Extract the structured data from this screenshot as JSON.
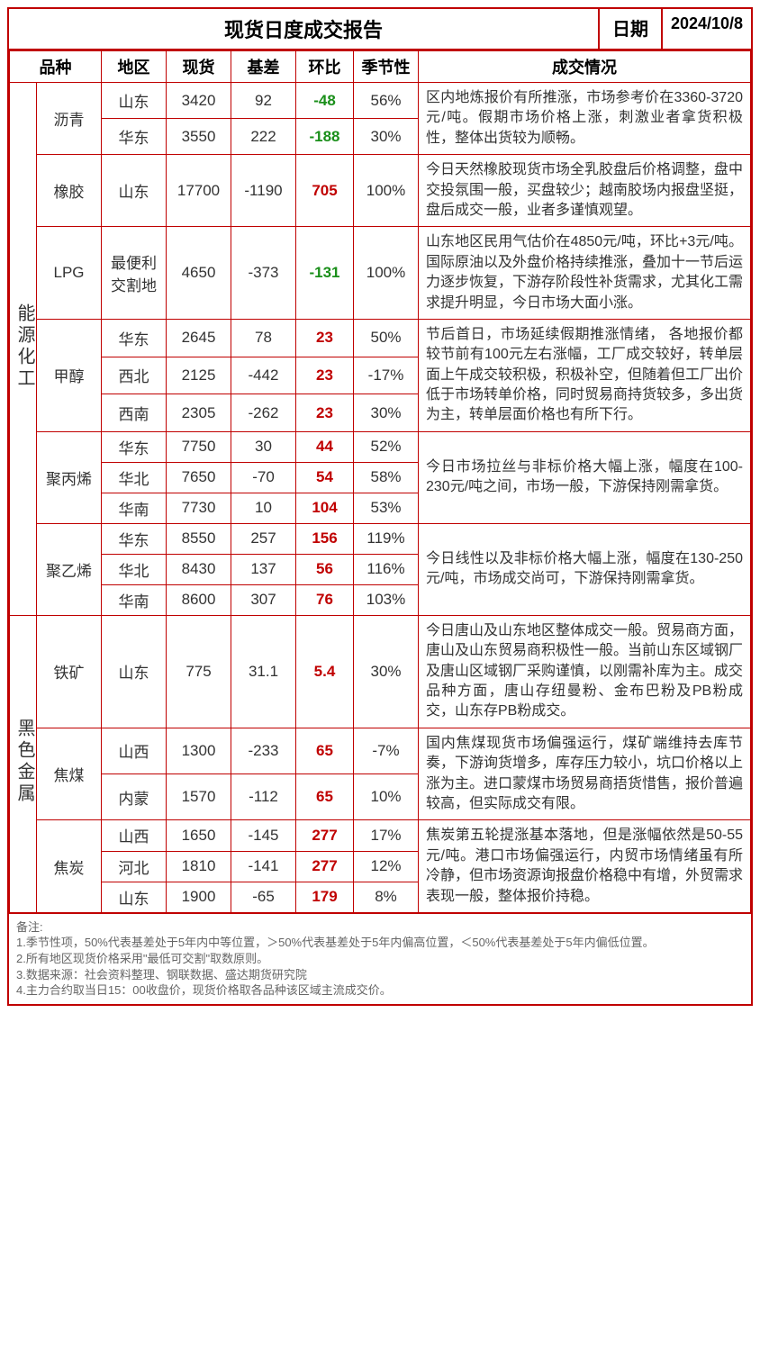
{
  "title": "现货日度成交报告",
  "date_label": "日期",
  "date_value": "2024/10/8",
  "headers": {
    "category_product": "品种",
    "region": "地区",
    "spot": "现货",
    "basis": "基差",
    "mom": "环比",
    "season": "季节性",
    "situation": "成交情况"
  },
  "colors": {
    "border": "#c00000",
    "pos": "#c00000",
    "neg": "#1a8f1a",
    "text": "#333333",
    "footnote": "#666666",
    "bg": "#ffffff"
  },
  "categories": [
    {
      "name": "能源化工",
      "products": [
        {
          "name": "沥青",
          "desc": "区内地炼报价有所推涨，市场参考价在3360-3720元/吨。假期市场价格上涨，刺激业者拿货积极性，整体出货较为顺畅。",
          "rows": [
            {
              "region": "山东",
              "spot": "3420",
              "basis": "92",
              "mom": "-48",
              "mom_dir": "neg",
              "season": "56%"
            },
            {
              "region": "华东",
              "spot": "3550",
              "basis": "222",
              "mom": "-188",
              "mom_dir": "neg",
              "season": "30%"
            }
          ]
        },
        {
          "name": "橡胶",
          "desc": "今日天然橡胶现货市场全乳胶盘后价格调整，盘中交投氛围一般，买盘较少；越南胶场内报盘坚挺，盘后成交一般，业者多谨慎观望。",
          "rows": [
            {
              "region": "山东",
              "spot": "17700",
              "basis": "-1190",
              "mom": "705",
              "mom_dir": "pos",
              "season": "100%"
            }
          ]
        },
        {
          "name": "LPG",
          "desc": "山东地区民用气估价在4850元/吨，环比+3元/吨。 国际原油以及外盘价格持续推涨，叠加十一节后运力逐步恢复，下游存阶段性补货需求，尤其化工需求提升明显，今日市场大面小涨。",
          "rows": [
            {
              "region": "最便利交割地",
              "spot": "4650",
              "basis": "-373",
              "mom": "-131",
              "mom_dir": "neg",
              "season": "100%"
            }
          ]
        },
        {
          "name": "甲醇",
          "desc": "节后首日，市场延续假期推涨情绪， 各地报价都较节前有100元左右涨幅，工厂成交较好，转单层面上午成交较积极，积极补空，但随着但工厂出价低于市场转单价格，同时贸易商持货较多，多出货为主，转单层面价格也有所下行。",
          "rows": [
            {
              "region": "华东",
              "spot": "2645",
              "basis": "78",
              "mom": "23",
              "mom_dir": "pos",
              "season": "50%"
            },
            {
              "region": "西北",
              "spot": "2125",
              "basis": "-442",
              "mom": "23",
              "mom_dir": "pos",
              "season": "-17%"
            },
            {
              "region": "西南",
              "spot": "2305",
              "basis": "-262",
              "mom": "23",
              "mom_dir": "pos",
              "season": "30%"
            }
          ]
        },
        {
          "name": "聚丙烯",
          "desc": "今日市场拉丝与非标价格大幅上涨，幅度在100-230元/吨之间，市场一般，下游保持刚需拿货。",
          "rows": [
            {
              "region": "华东",
              "spot": "7750",
              "basis": "30",
              "mom": "44",
              "mom_dir": "pos",
              "season": "52%"
            },
            {
              "region": "华北",
              "spot": "7650",
              "basis": "-70",
              "mom": "54",
              "mom_dir": "pos",
              "season": "58%"
            },
            {
              "region": "华南",
              "spot": "7730",
              "basis": "10",
              "mom": "104",
              "mom_dir": "pos",
              "season": "53%"
            }
          ]
        },
        {
          "name": "聚乙烯",
          "desc": "今日线性以及非标价格大幅上涨，幅度在130-250元/吨，市场成交尚可，下游保持刚需拿货。",
          "rows": [
            {
              "region": "华东",
              "spot": "8550",
              "basis": "257",
              "mom": "156",
              "mom_dir": "pos",
              "season": "119%"
            },
            {
              "region": "华北",
              "spot": "8430",
              "basis": "137",
              "mom": "56",
              "mom_dir": "pos",
              "season": "116%"
            },
            {
              "region": "华南",
              "spot": "8600",
              "basis": "307",
              "mom": "76",
              "mom_dir": "pos",
              "season": "103%"
            }
          ]
        }
      ]
    },
    {
      "name": "黑色金属",
      "products": [
        {
          "name": "铁矿",
          "desc": "今日唐山及山东地区整体成交一般。贸易商方面，唐山及山东贸易商积极性一般。当前山东区域钢厂及唐山区域钢厂采购谨慎，以刚需补库为主。成交品种方面，唐山存纽曼粉、金布巴粉及PB粉成交，山东存PB粉成交。",
          "rows": [
            {
              "region": "山东",
              "spot": "775",
              "basis": "31.1",
              "mom": "5.4",
              "mom_dir": "pos",
              "season": "30%"
            }
          ]
        },
        {
          "name": "焦煤",
          "desc": "国内焦煤现货市场偏强运行，煤矿端维持去库节奏，下游询货增多，库存压力较小，坑口价格以上涨为主。进口蒙煤市场贸易商捂货惜售，报价普遍较高，但实际成交有限。",
          "rows": [
            {
              "region": "山西",
              "spot": "1300",
              "basis": "-233",
              "mom": "65",
              "mom_dir": "pos",
              "season": "-7%"
            },
            {
              "region": "内蒙",
              "spot": "1570",
              "basis": "-112",
              "mom": "65",
              "mom_dir": "pos",
              "season": "10%"
            }
          ]
        },
        {
          "name": "焦炭",
          "desc": "焦炭第五轮提涨基本落地，但是涨幅依然是50-55元/吨。港口市场偏强运行，内贸市场情绪虽有所冷静，但市场资源询报盘价格稳中有增，外贸需求表现一般，整体报价持稳。",
          "rows": [
            {
              "region": "山西",
              "spot": "1650",
              "basis": "-145",
              "mom": "277",
              "mom_dir": "pos",
              "season": "17%"
            },
            {
              "region": "河北",
              "spot": "1810",
              "basis": "-141",
              "mom": "277",
              "mom_dir": "pos",
              "season": "12%"
            },
            {
              "region": "山东",
              "spot": "1900",
              "basis": "-65",
              "mom": "179",
              "mom_dir": "pos",
              "season": "8%"
            }
          ]
        }
      ]
    }
  ],
  "footnotes_title": "备注:",
  "footnotes": [
    "1.季节性项，50%代表基差处于5年内中等位置，＞50%代表基差处于5年内偏高位置，＜50%代表基差处于5年内偏低位置。",
    "2.所有地区现货价格采用\"最低可交割\"取数原则。",
    "3.数据来源：社会资料整理、钢联数据、盛达期货研究院",
    "4.主力合约取当日15：00收盘价，现货价格取各品种该区域主流成交价。"
  ]
}
